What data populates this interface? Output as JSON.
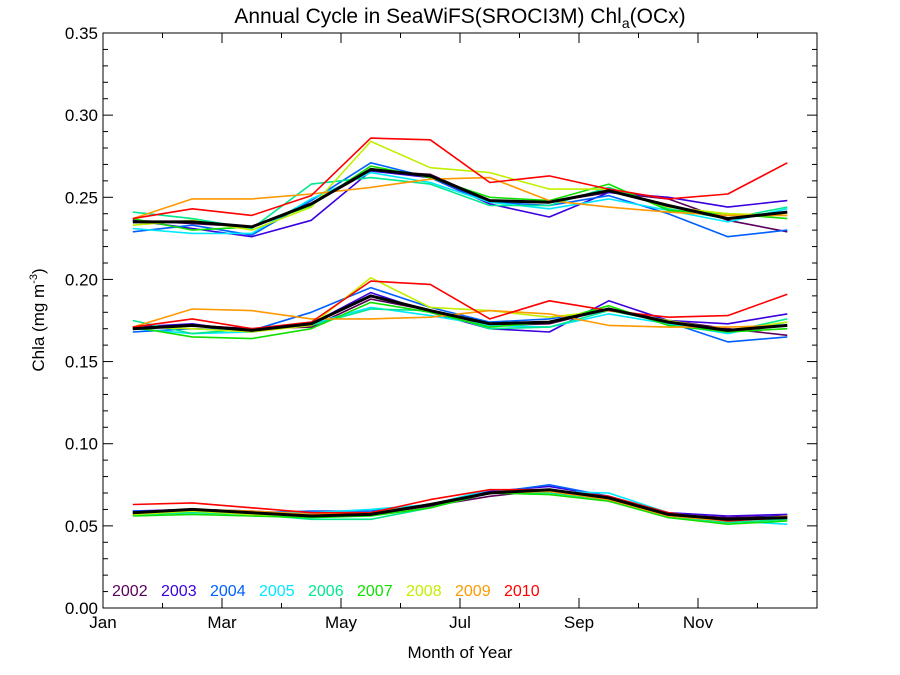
{
  "chart_data": {
    "type": "line",
    "title_main": "Annual Cycle in SeaWiFS(SROCI3M) Chl",
    "title_sub": "a",
    "title_end": "(OCx)",
    "xlabel": "Month of Year",
    "ylabel_main": "Chla (mg m",
    "ylabel_sup": "-3",
    "ylabel_end": ")",
    "xlim": [
      0,
      12
    ],
    "ylim": [
      0,
      0.35
    ],
    "xticks": [
      {
        "x": 0,
        "label": "Jan"
      },
      {
        "x": 2,
        "label": "Mar"
      },
      {
        "x": 4,
        "label": "May"
      },
      {
        "x": 6,
        "label": "Jul"
      },
      {
        "x": 8,
        "label": "Sep"
      },
      {
        "x": 10,
        "label": "Nov"
      }
    ],
    "yticks": [
      {
        "y": 0.0,
        "label": "0.00"
      },
      {
        "y": 0.05,
        "label": "0.05"
      },
      {
        "y": 0.1,
        "label": "0.10"
      },
      {
        "y": 0.15,
        "label": "0.15"
      },
      {
        "y": 0.2,
        "label": "0.20"
      },
      {
        "y": 0.25,
        "label": "0.25"
      },
      {
        "y": 0.3,
        "label": "0.30"
      },
      {
        "y": 0.35,
        "label": "0.35"
      }
    ],
    "x": [
      0.5,
      1.5,
      2.5,
      3.5,
      4.5,
      5.5,
      6.5,
      7.5,
      8.5,
      9.5,
      10.5,
      11.5
    ],
    "groups": [
      "upper",
      "middle",
      "lower"
    ],
    "series": [
      {
        "name": "2002",
        "color": "#5a005a",
        "upper": [
          0.236,
          0.234,
          0.232,
          0.246,
          0.266,
          0.264,
          0.248,
          0.247,
          0.253,
          0.249,
          0.236,
          0.229
        ],
        "middle": [
          0.17,
          0.172,
          0.17,
          0.171,
          0.188,
          0.181,
          0.172,
          0.173,
          0.182,
          0.175,
          0.17,
          0.166
        ],
        "lower": [
          0.058,
          0.06,
          0.058,
          0.056,
          0.057,
          0.062,
          0.068,
          0.072,
          0.067,
          0.057,
          0.055,
          0.056
        ]
      },
      {
        "name": "2003",
        "color": "#3a00e0",
        "upper": [
          0.236,
          0.231,
          0.226,
          0.236,
          0.266,
          0.262,
          0.246,
          0.238,
          0.253,
          0.25,
          0.244,
          0.248
        ],
        "middle": [
          0.171,
          0.173,
          0.168,
          0.173,
          0.192,
          0.18,
          0.17,
          0.168,
          0.187,
          0.175,
          0.173,
          0.179
        ],
        "lower": [
          0.059,
          0.06,
          0.059,
          0.057,
          0.057,
          0.063,
          0.071,
          0.074,
          0.068,
          0.058,
          0.056,
          0.057
        ]
      },
      {
        "name": "2004",
        "color": "#0060ff",
        "upper": [
          0.229,
          0.233,
          0.227,
          0.248,
          0.271,
          0.262,
          0.247,
          0.245,
          0.251,
          0.24,
          0.226,
          0.23
        ],
        "middle": [
          0.168,
          0.17,
          0.169,
          0.18,
          0.195,
          0.183,
          0.174,
          0.176,
          0.182,
          0.174,
          0.162,
          0.165
        ],
        "lower": [
          0.059,
          0.059,
          0.058,
          0.059,
          0.059,
          0.063,
          0.07,
          0.075,
          0.068,
          0.057,
          0.054,
          0.056
        ]
      },
      {
        "name": "2005",
        "color": "#00e8ff",
        "upper": [
          0.231,
          0.228,
          0.228,
          0.249,
          0.265,
          0.259,
          0.247,
          0.243,
          0.249,
          0.242,
          0.235,
          0.243
        ],
        "middle": [
          0.17,
          0.167,
          0.168,
          0.173,
          0.183,
          0.178,
          0.172,
          0.171,
          0.179,
          0.173,
          0.167,
          0.174
        ],
        "lower": [
          0.057,
          0.058,
          0.058,
          0.058,
          0.06,
          0.063,
          0.072,
          0.071,
          0.07,
          0.058,
          0.053,
          0.051
        ]
      },
      {
        "name": "2006",
        "color": "#00e890",
        "upper": [
          0.241,
          0.237,
          0.231,
          0.258,
          0.262,
          0.258,
          0.245,
          0.245,
          0.256,
          0.243,
          0.237,
          0.244
        ],
        "middle": [
          0.175,
          0.167,
          0.17,
          0.172,
          0.182,
          0.181,
          0.17,
          0.171,
          0.181,
          0.174,
          0.168,
          0.176
        ],
        "lower": [
          0.057,
          0.058,
          0.057,
          0.054,
          0.054,
          0.061,
          0.07,
          0.07,
          0.066,
          0.056,
          0.052,
          0.054
        ]
      },
      {
        "name": "2007",
        "color": "#10e000",
        "upper": [
          0.237,
          0.23,
          0.232,
          0.245,
          0.269,
          0.262,
          0.25,
          0.248,
          0.258,
          0.242,
          0.24,
          0.237
        ],
        "middle": [
          0.171,
          0.165,
          0.164,
          0.17,
          0.186,
          0.18,
          0.171,
          0.174,
          0.184,
          0.172,
          0.168,
          0.17
        ],
        "lower": [
          0.056,
          0.057,
          0.056,
          0.055,
          0.056,
          0.061,
          0.07,
          0.069,
          0.065,
          0.055,
          0.051,
          0.053
        ]
      },
      {
        "name": "2008",
        "color": "#c0f000",
        "upper": [
          0.233,
          0.236,
          0.23,
          0.244,
          0.284,
          0.268,
          0.265,
          0.255,
          0.255,
          0.244,
          0.24,
          0.239
        ],
        "middle": [
          0.171,
          0.17,
          0.168,
          0.172,
          0.201,
          0.183,
          0.181,
          0.177,
          0.181,
          0.175,
          0.169,
          0.174
        ],
        "lower": [
          0.057,
          0.059,
          0.057,
          0.056,
          0.058,
          0.063,
          0.07,
          0.071,
          0.067,
          0.057,
          0.054,
          0.055
        ]
      },
      {
        "name": "2009",
        "color": "#ff9900",
        "upper": [
          0.237,
          0.249,
          0.249,
          0.252,
          0.256,
          0.261,
          0.262,
          0.248,
          0.244,
          0.241,
          0.239,
          0.239
        ],
        "middle": [
          0.171,
          0.182,
          0.181,
          0.176,
          0.176,
          0.177,
          0.181,
          0.179,
          0.172,
          0.171,
          0.171,
          0.172
        ],
        "lower": [
          0.058,
          0.06,
          0.059,
          0.057,
          0.058,
          0.063,
          0.07,
          0.071,
          0.066,
          0.056,
          0.053,
          0.056
        ]
      },
      {
        "name": "2010",
        "color": "#ff0000",
        "upper": [
          0.237,
          0.243,
          0.239,
          0.251,
          0.286,
          0.285,
          0.259,
          0.263,
          0.255,
          0.249,
          0.252,
          0.271
        ],
        "middle": [
          0.171,
          0.176,
          0.17,
          0.174,
          0.199,
          0.197,
          0.176,
          0.187,
          0.181,
          0.177,
          0.178,
          0.191
        ],
        "lower": [
          0.063,
          0.064,
          0.061,
          0.058,
          0.058,
          0.066,
          0.072,
          0.072,
          0.068,
          0.058,
          0.053,
          0.055
        ]
      },
      {
        "color": "#000000",
        "width": 3,
        "upper": [
          0.235,
          0.235,
          0.232,
          0.246,
          0.267,
          0.263,
          0.248,
          0.247,
          0.254,
          0.245,
          0.237,
          0.241
        ],
        "middle": [
          0.17,
          0.172,
          0.169,
          0.173,
          0.19,
          0.181,
          0.173,
          0.174,
          0.182,
          0.174,
          0.169,
          0.172
        ],
        "lower": [
          0.058,
          0.06,
          0.058,
          0.056,
          0.057,
          0.063,
          0.07,
          0.072,
          0.067,
          0.057,
          0.054,
          0.055
        ]
      }
    ],
    "legend": {
      "placement": "bottom-left",
      "inside": true
    },
    "grid": false
  }
}
